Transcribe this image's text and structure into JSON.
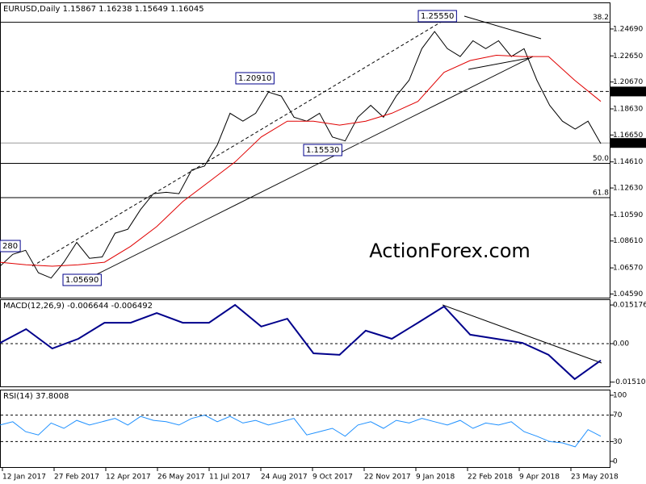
{
  "chart_data": [
    {
      "type": "line",
      "title": "EURUSD,Daily 1.15867 1.16238 1.15649 1.16045",
      "ylim": [
        1.0425,
        1.264
      ],
      "yticks": [
        {
          "value": 1.2469,
          "label": "1.24690"
        },
        {
          "value": 1.2265,
          "label": "1.22650"
        },
        {
          "value": 1.2067,
          "label": "1.20670"
        },
        {
          "value": 1.1863,
          "label": "1.18630"
        },
        {
          "value": 1.1665,
          "label": "1.16650"
        },
        {
          "value": 1.1461,
          "label": "1.14610"
        },
        {
          "value": 1.1263,
          "label": "1.12630"
        },
        {
          "value": 1.1059,
          "label": "1.10590"
        },
        {
          "value": 1.0861,
          "label": "1.08610"
        },
        {
          "value": 1.0657,
          "label": "1.06570"
        },
        {
          "value": 1.0459,
          "label": "1.04590"
        }
      ],
      "series": [
        {
          "color": "#000000",
          "values": [
            1.067,
            1.076,
            1.079,
            1.062,
            1.058,
            1.07,
            1.085,
            1.073,
            1.074,
            1.092,
            1.095,
            1.11,
            1.122,
            1.123,
            1.122,
            1.14,
            1.143,
            1.159,
            1.183,
            1.177,
            1.183,
            1.199,
            1.196,
            1.18,
            1.177,
            1.183,
            1.165,
            1.162,
            1.18,
            1.189,
            1.18,
            1.196,
            1.208,
            1.232,
            1.245,
            1.232,
            1.226,
            1.238,
            1.232,
            1.238,
            1.226,
            1.232,
            1.208,
            1.189,
            1.177,
            1.171,
            1.177,
            1.16
          ]
        },
        {
          "color": "#e00000",
          "values": [
            1.07,
            1.068,
            1.067,
            1.068,
            1.07,
            1.082,
            1.097,
            1.116,
            1.131,
            1.146,
            1.165,
            1.177,
            1.177,
            1.174,
            1.177,
            1.183,
            1.192,
            1.214,
            1.223,
            1.227,
            1.226,
            1.226,
            1.208,
            1.192
          ]
        }
      ],
      "levels": [
        {
          "value": 1.252,
          "label": "38.2"
        },
        {
          "value": 1.145,
          "label": "50.0"
        },
        {
          "value": 1.119,
          "label": "61.8"
        }
      ],
      "markers": [
        {
          "value": 1.1995,
          "label": "1.19950"
        },
        {
          "value": 1.16045,
          "label": "1.16045"
        }
      ],
      "annotations": [
        "1.25550",
        "1.20910",
        "1.15530",
        "1.05690",
        "280"
      ],
      "watermark": "ActionForex.com"
    },
    {
      "type": "line",
      "title": "MACD(12,26,9) -0.006644 -0.006492",
      "ylim": [
        -0.0171,
        0.0171
      ],
      "yticks": [
        0.015176,
        {
          "value": 0,
          "label": "0.00"
        },
        -0.015105
      ],
      "series": [
        {
          "color": "#00008b",
          "values": [
            0.0003,
            0.0057,
            -0.0019,
            0.0019,
            0.0082,
            0.0082,
            0.012,
            0.0082,
            0.0082,
            0.0152,
            0.0067,
            0.0098,
            -0.0038,
            -0.0044,
            0.0051,
            0.0019,
            0.0082,
            0.0146,
            0.0035,
            0.0019,
            0.0003,
            -0.0044,
            -0.0139,
            -0.0066
          ]
        }
      ]
    },
    {
      "type": "line",
      "title": "RSI(14) 37.8008",
      "ylim": [
        -9.8,
        107.3
      ],
      "yticks": [
        100,
        70,
        30,
        0
      ],
      "series": [
        {
          "color": "#1e90ff",
          "values": [
            55,
            60,
            45,
            40,
            58,
            50,
            62,
            55,
            60,
            65,
            55,
            68,
            62,
            60,
            55,
            65,
            70,
            60,
            68,
            58,
            62,
            55,
            60,
            65,
            40,
            45,
            50,
            38,
            55,
            60,
            50,
            62,
            58,
            65,
            60,
            55,
            62,
            50,
            58,
            55,
            60,
            45,
            38,
            30,
            28,
            22,
            48,
            38
          ]
        }
      ]
    }
  ],
  "xlabels": [
    "12 Jan 2017",
    "27 Feb 2017",
    "12 Apr 2017",
    "26 May 2017",
    "11 Jul 2017",
    "24 Aug 2017",
    "9 Oct 2017",
    "22 Nov 2017",
    "9 Jan 2018",
    "22 Feb 2018",
    "9 Apr 2018",
    "23 May 2018"
  ]
}
